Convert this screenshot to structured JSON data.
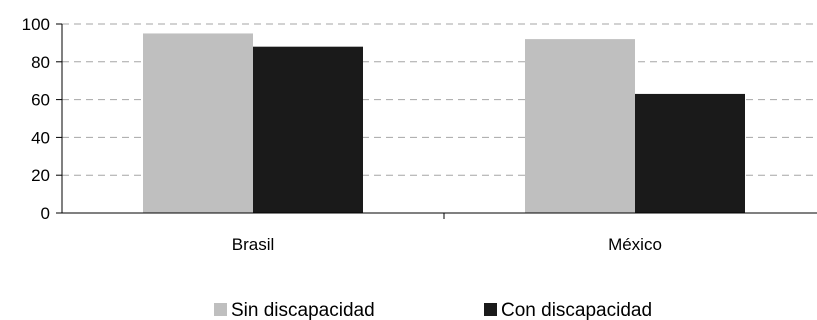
{
  "chart_data": {
    "type": "bar",
    "categories": [
      "Brasil",
      "México"
    ],
    "series": [
      {
        "name": "Sin discapacidad",
        "values": [
          95,
          92
        ],
        "color": "#bfbfbf"
      },
      {
        "name": "Con discapacidad",
        "values": [
          88,
          63
        ],
        "color": "#1a1a1a"
      }
    ],
    "ylim": [
      0,
      100
    ],
    "yticks": [
      0,
      20,
      40,
      60,
      80,
      100
    ],
    "grid": true,
    "grid_style": "dashed",
    "legend_position": "bottom",
    "title": "",
    "xlabel": "",
    "ylabel": ""
  }
}
